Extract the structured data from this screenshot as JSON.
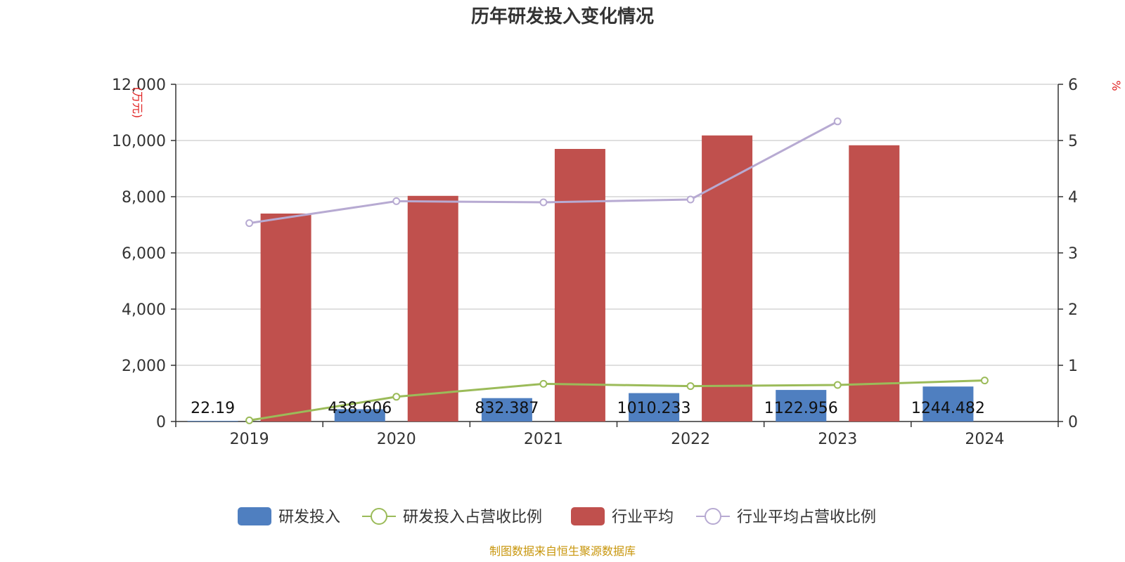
{
  "chart_data": {
    "type": "bar",
    "title": "历年研发投入变化情况",
    "categories": [
      "2019",
      "2020",
      "2021",
      "2022",
      "2023",
      "2024"
    ],
    "y_left": {
      "unit_label": "(万元)",
      "range": [
        0,
        12000
      ],
      "ticks": [
        "0",
        "2,000",
        "4,000",
        "6,000",
        "8,000",
        "10,000",
        "12,000"
      ]
    },
    "y_right": {
      "unit_label": "%",
      "range": [
        0,
        6
      ],
      "ticks": [
        "0",
        "1",
        "2",
        "3",
        "4",
        "5",
        "6"
      ]
    },
    "grid": true,
    "legend_position": "bottom",
    "series": [
      {
        "name": "研发投入",
        "type": "bar",
        "axis": "left",
        "color": "#4f7fc0",
        "values": [
          22.19,
          438.606,
          832.387,
          1010.233,
          1122.956,
          1244.482
        ],
        "labels": [
          "22.19",
          "438.606",
          "832.387",
          "1010.233",
          "1122.956",
          "1244.482"
        ]
      },
      {
        "name": "研发投入占营收比例",
        "type": "line",
        "axis": "right",
        "color": "#9bbb59",
        "values": [
          0.02,
          0.44,
          0.67,
          0.63,
          0.65,
          0.73
        ]
      },
      {
        "name": "行业平均",
        "type": "bar",
        "axis": "left",
        "color": "#c0504d",
        "values": [
          7400,
          8030,
          9700,
          10180,
          9830,
          null
        ]
      },
      {
        "name": "行业平均占营收比例",
        "type": "line",
        "axis": "right",
        "color": "#b7aad2",
        "values": [
          3.53,
          3.92,
          3.9,
          3.95,
          5.34,
          null
        ]
      }
    ]
  },
  "source_note": "制图数据来自恒生聚源数据库"
}
